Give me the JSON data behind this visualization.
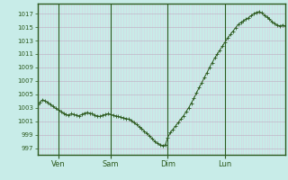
{
  "background_color": "#c8ece8",
  "grid_color_major_y": "#c0b8c8",
  "grid_color_major_x": "#c0b8c8",
  "grid_color_minor_x": "#d8d0e0",
  "line_color": "#2d5a1e",
  "marker_color": "#2d5a1e",
  "spine_color": "#2d5a1e",
  "yticks": [
    997,
    999,
    1001,
    1003,
    1005,
    1007,
    1009,
    1011,
    1013,
    1015,
    1017
  ],
  "ylim": [
    996.0,
    1018.5
  ],
  "xlim": [
    0,
    95
  ],
  "xtick_positions": [
    8,
    28,
    50,
    72
  ],
  "xtick_labels": [
    "Ven",
    "Sam",
    "Dim",
    "Lun"
  ],
  "vline_positions": [
    8,
    28,
    50,
    72
  ],
  "pressure_data": [
    1003.5,
    1003.8,
    1004.2,
    1004.0,
    1003.8,
    1003.5,
    1003.2,
    1002.9,
    1002.7,
    1002.4,
    1002.2,
    1002.0,
    1001.9,
    1002.1,
    1002.0,
    1001.9,
    1001.8,
    1002.0,
    1002.2,
    1002.3,
    1002.2,
    1002.1,
    1001.9,
    1001.8,
    1001.7,
    1001.9,
    1002.0,
    1002.1,
    1002.0,
    1001.9,
    1001.8,
    1001.7,
    1001.6,
    1001.5,
    1001.4,
    1001.3,
    1001.1,
    1000.8,
    1000.5,
    1000.2,
    999.9,
    999.5,
    999.2,
    998.8,
    998.4,
    998.0,
    997.7,
    997.5,
    997.4,
    997.45,
    998.6,
    999.3,
    999.8,
    1000.3,
    1000.8,
    1001.3,
    1001.8,
    1002.4,
    1003.0,
    1003.7,
    1004.4,
    1005.2,
    1006.0,
    1006.7,
    1007.5,
    1008.2,
    1009.0,
    1009.7,
    1010.4,
    1011.0,
    1011.6,
    1012.2,
    1012.8,
    1013.4,
    1013.9,
    1014.4,
    1014.9,
    1015.4,
    1015.7,
    1015.9,
    1016.2,
    1016.4,
    1016.7,
    1017.0,
    1017.2,
    1017.3,
    1017.1,
    1016.8,
    1016.5,
    1016.2,
    1015.8,
    1015.5,
    1015.3,
    1015.2,
    1015.3,
    1015.2
  ]
}
